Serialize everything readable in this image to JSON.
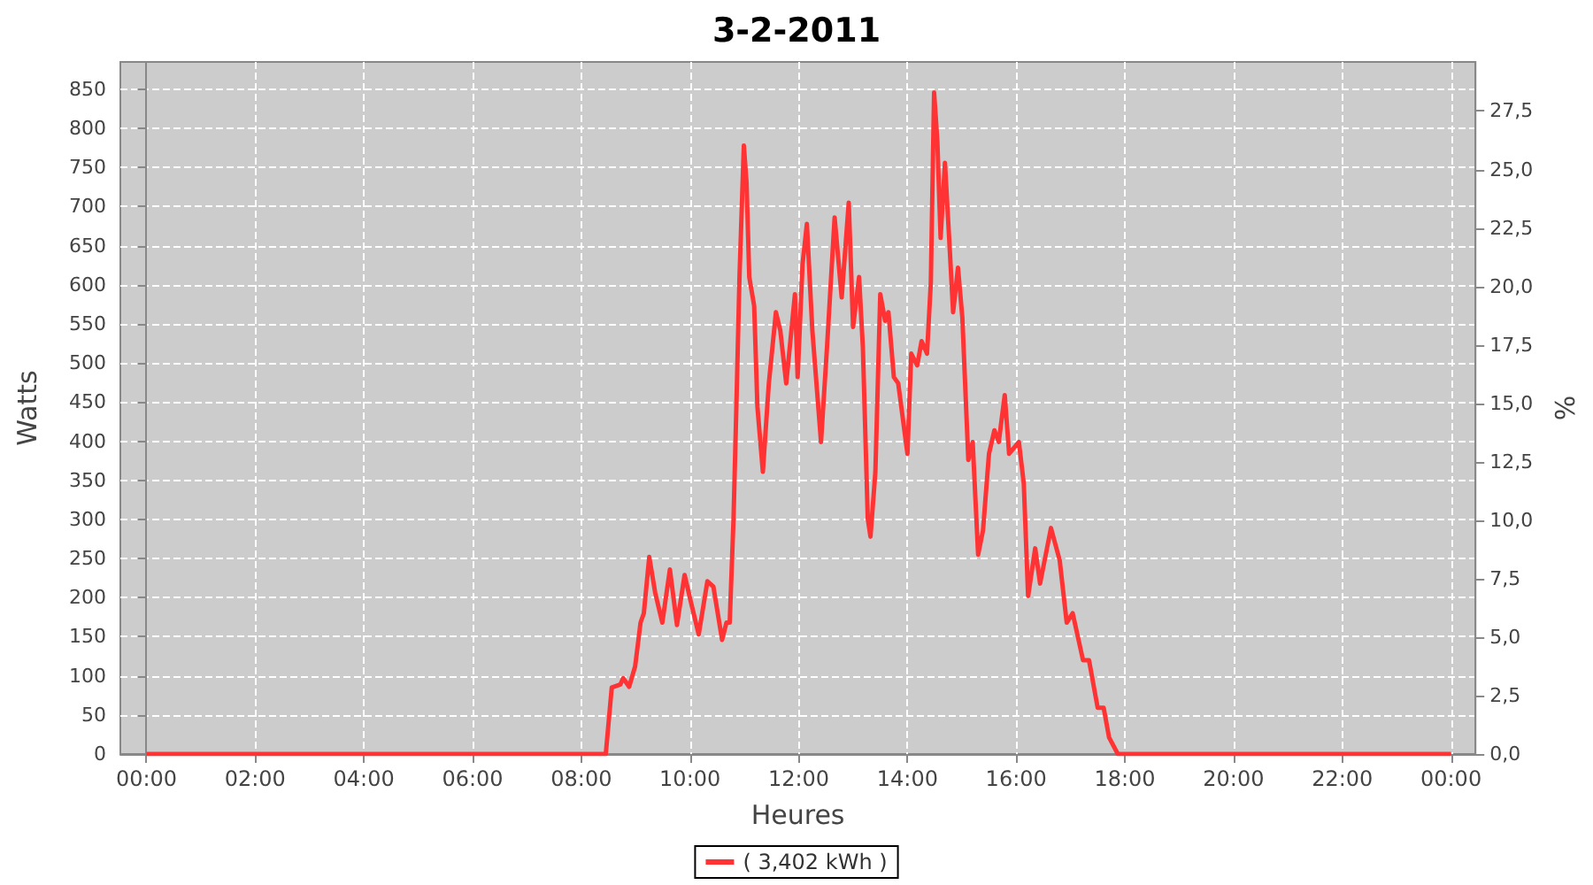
{
  "chart_data": {
    "type": "line",
    "title": "3-2-2011",
    "xlabel": "Heures",
    "ylabel": "Watts",
    "y2label": "%",
    "series": [
      {
        "name": "( 3,402 kWh )",
        "color": "#ff3333",
        "x": [
          0,
          8.4,
          8.45,
          8.56,
          8.72,
          8.77,
          8.88,
          8.99,
          9.09,
          9.15,
          9.25,
          9.36,
          9.49,
          9.63,
          9.76,
          9.9,
          10.0,
          10.16,
          10.32,
          10.43,
          10.59,
          10.67,
          10.73,
          10.8,
          10.85,
          10.91,
          10.99,
          11.04,
          11.09,
          11.18,
          11.24,
          11.34,
          11.45,
          11.58,
          11.66,
          11.77,
          11.93,
          11.98,
          12.07,
          12.15,
          12.25,
          12.41,
          12.52,
          12.66,
          12.79,
          12.92,
          13.0,
          13.11,
          13.18,
          13.27,
          13.32,
          13.41,
          13.5,
          13.59,
          13.65,
          13.75,
          13.83,
          14.0,
          14.07,
          14.18,
          14.26,
          14.36,
          14.43,
          14.49,
          14.55,
          14.61,
          14.69,
          14.77,
          14.84,
          14.93,
          15.01,
          15.12,
          15.2,
          15.3,
          15.39,
          15.5,
          15.6,
          15.68,
          15.79,
          15.87,
          16.05,
          16.14,
          16.22,
          16.35,
          16.44,
          16.64,
          16.8,
          16.93,
          17.04,
          17.23,
          17.34,
          17.5,
          17.61,
          17.71,
          17.87,
          24
        ],
        "values": [
          0,
          0,
          0,
          85,
          89,
          97,
          86,
          112,
          168,
          180,
          252,
          206,
          168,
          236,
          165,
          229,
          199,
          153,
          221,
          214,
          146,
          168,
          168,
          300,
          437,
          610,
          778,
          731,
          610,
          573,
          444,
          361,
          474,
          565,
          542,
          474,
          588,
          482,
          626,
          678,
          542,
          399,
          520,
          686,
          584,
          705,
          546,
          610,
          520,
          301,
          278,
          361,
          588,
          554,
          565,
          482,
          474,
          384,
          512,
          497,
          528,
          512,
          603,
          846,
          784,
          660,
          756,
          656,
          565,
          622,
          558,
          376,
          399,
          255,
          286,
          384,
          414,
          399,
          459,
          384,
          399,
          346,
          202,
          263,
          218,
          289,
          248,
          168,
          180,
          120,
          120,
          59,
          59,
          21,
          0,
          0
        ]
      }
    ],
    "xlim": [
      -0.48,
      24.45
    ],
    "xticks": [
      {
        "value": 0,
        "label": "00:00"
      },
      {
        "value": 2,
        "label": "02:00"
      },
      {
        "value": 4,
        "label": "04:00"
      },
      {
        "value": 6,
        "label": "06:00"
      },
      {
        "value": 8,
        "label": "08:00"
      },
      {
        "value": 10,
        "label": "10:00"
      },
      {
        "value": 12,
        "label": "12:00"
      },
      {
        "value": 14,
        "label": "14:00"
      },
      {
        "value": 16,
        "label": "16:00"
      },
      {
        "value": 18,
        "label": "18:00"
      },
      {
        "value": 20,
        "label": "20:00"
      },
      {
        "value": 22,
        "label": "22:00"
      },
      {
        "value": 24,
        "label": "00:00"
      }
    ],
    "ylim": [
      0,
      885
    ],
    "yticks": [
      0,
      50,
      100,
      150,
      200,
      250,
      300,
      350,
      400,
      450,
      500,
      550,
      600,
      650,
      700,
      750,
      800,
      850
    ],
    "y2lim": [
      0,
      29.6
    ],
    "y2ticks": [
      {
        "value": 0,
        "label": "0,0"
      },
      {
        "value": 2.5,
        "label": "2,5"
      },
      {
        "value": 5,
        "label": "5,0"
      },
      {
        "value": 7.5,
        "label": "7,5"
      },
      {
        "value": 10,
        "label": "10,0"
      },
      {
        "value": 12.5,
        "label": "12,5"
      },
      {
        "value": 15,
        "label": "15,0"
      },
      {
        "value": 17.5,
        "label": "17,5"
      },
      {
        "value": 20,
        "label": "20,0"
      },
      {
        "value": 22.5,
        "label": "22,5"
      },
      {
        "value": 25,
        "label": "25,0"
      },
      {
        "value": 27.5,
        "label": "27,5"
      }
    ],
    "grid": true,
    "legend": "bottom",
    "marker": "none",
    "line_style": "solid"
  }
}
